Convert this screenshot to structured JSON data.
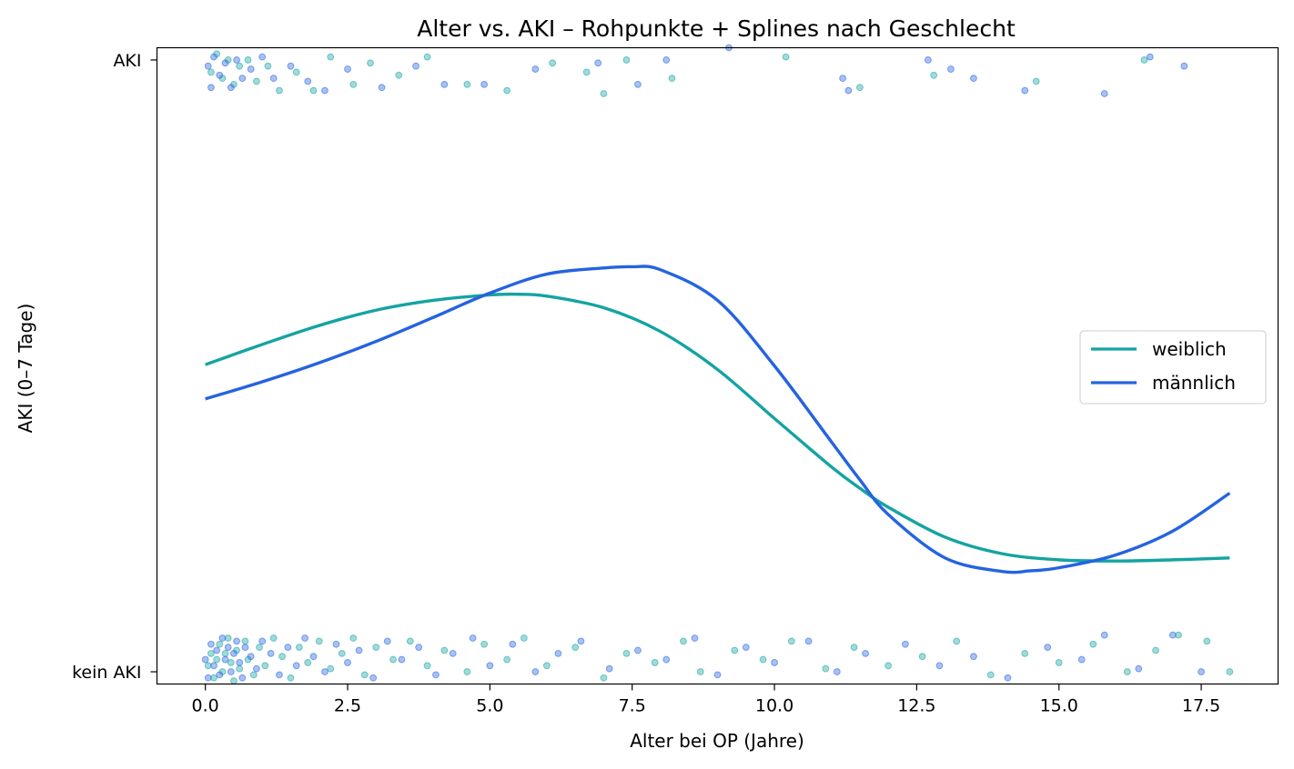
{
  "chart_data": {
    "type": "scatter",
    "title": "Alter vs. AKI – Rohpunkte + Splines nach Geschlecht",
    "xlabel": "Alter bei OP (Jahre)",
    "ylabel": "AKI (0–7 Tage)",
    "xlim": [
      -0.85,
      18.85
    ],
    "ylim": [
      -0.02,
      1.02
    ],
    "x_ticks": [
      {
        "value": 0.0,
        "label": "0.0"
      },
      {
        "value": 2.5,
        "label": "2.5"
      },
      {
        "value": 5.0,
        "label": "5.0"
      },
      {
        "value": 7.5,
        "label": "7.5"
      },
      {
        "value": 10.0,
        "label": "10.0"
      },
      {
        "value": 12.5,
        "label": "12.5"
      },
      {
        "value": 15.0,
        "label": "15.0"
      },
      {
        "value": 17.5,
        "label": "17.5"
      }
    ],
    "y_ticks": [
      {
        "value": 0,
        "label": "kein AKI"
      },
      {
        "value": 1,
        "label": "AKI"
      }
    ],
    "grid": false,
    "legend_position": "center-right",
    "colors": {
      "weiblich": "#14a3a3",
      "maennlich": "#2563e0"
    },
    "series": [
      {
        "name": "weiblich",
        "color": "#14a3a3",
        "spline": {
          "x": [
            0,
            1,
            2,
            3,
            4,
            5,
            5.5,
            6,
            7,
            8,
            9,
            10,
            11,
            11.5,
            12,
            13,
            14,
            15,
            16,
            17,
            18
          ],
          "y": [
            0.502,
            0.535,
            0.566,
            0.591,
            0.607,
            0.616,
            0.617,
            0.614,
            0.595,
            0.556,
            0.494,
            0.414,
            0.335,
            0.3,
            0.269,
            0.22,
            0.193,
            0.183,
            0.181,
            0.183,
            0.186
          ]
        },
        "points": [
          {
            "x": 0.05,
            "y": 0.01
          },
          {
            "x": 0.1,
            "y": 0.03
          },
          {
            "x": 0.15,
            "y": -0.01
          },
          {
            "x": 0.2,
            "y": 0.02
          },
          {
            "x": 0.25,
            "y": 0.045
          },
          {
            "x": 0.3,
            "y": 0.0
          },
          {
            "x": 0.35,
            "y": 0.03
          },
          {
            "x": 0.4,
            "y": 0.055
          },
          {
            "x": 0.45,
            "y": 0.015
          },
          {
            "x": 0.5,
            "y": -0.015
          },
          {
            "x": 0.55,
            "y": 0.035
          },
          {
            "x": 0.6,
            "y": 0.005
          },
          {
            "x": 0.7,
            "y": 0.05
          },
          {
            "x": 0.75,
            "y": 0.02
          },
          {
            "x": 0.85,
            "y": -0.005
          },
          {
            "x": 0.95,
            "y": 0.04
          },
          {
            "x": 1.05,
            "y": 0.01
          },
          {
            "x": 1.2,
            "y": 0.055
          },
          {
            "x": 1.35,
            "y": 0.025
          },
          {
            "x": 1.5,
            "y": -0.01
          },
          {
            "x": 1.65,
            "y": 0.04
          },
          {
            "x": 1.8,
            "y": 0.015
          },
          {
            "x": 2.0,
            "y": 0.05
          },
          {
            "x": 2.2,
            "y": 0.005
          },
          {
            "x": 2.4,
            "y": 0.03
          },
          {
            "x": 2.6,
            "y": 0.055
          },
          {
            "x": 2.8,
            "y": -0.005
          },
          {
            "x": 3.0,
            "y": 0.04
          },
          {
            "x": 3.3,
            "y": 0.02
          },
          {
            "x": 3.6,
            "y": 0.05
          },
          {
            "x": 3.9,
            "y": 0.01
          },
          {
            "x": 4.2,
            "y": 0.035
          },
          {
            "x": 4.6,
            "y": 0.0
          },
          {
            "x": 4.9,
            "y": 0.045
          },
          {
            "x": 5.3,
            "y": 0.02
          },
          {
            "x": 5.6,
            "y": 0.055
          },
          {
            "x": 6.0,
            "y": 0.01
          },
          {
            "x": 6.5,
            "y": 0.04
          },
          {
            "x": 7.0,
            "y": -0.01
          },
          {
            "x": 7.4,
            "y": 0.03
          },
          {
            "x": 7.9,
            "y": 0.015
          },
          {
            "x": 8.4,
            "y": 0.05
          },
          {
            "x": 8.7,
            "y": 0.0
          },
          {
            "x": 9.3,
            "y": 0.035
          },
          {
            "x": 9.8,
            "y": 0.02
          },
          {
            "x": 10.3,
            "y": 0.05
          },
          {
            "x": 10.9,
            "y": 0.005
          },
          {
            "x": 11.4,
            "y": 0.04
          },
          {
            "x": 12.0,
            "y": 0.01
          },
          {
            "x": 12.6,
            "y": 0.025
          },
          {
            "x": 13.2,
            "y": 0.05
          },
          {
            "x": 13.8,
            "y": -0.005
          },
          {
            "x": 14.4,
            "y": 0.03
          },
          {
            "x": 15.0,
            "y": 0.015
          },
          {
            "x": 15.6,
            "y": 0.045
          },
          {
            "x": 16.2,
            "y": 0.0
          },
          {
            "x": 16.7,
            "y": 0.035
          },
          {
            "x": 17.1,
            "y": 0.06
          },
          {
            "x": 17.6,
            "y": 0.05
          },
          {
            "x": 18.0,
            "y": 0.0
          },
          {
            "x": 0.1,
            "y": 0.98
          },
          {
            "x": 0.2,
            "y": 1.01
          },
          {
            "x": 0.3,
            "y": 0.97
          },
          {
            "x": 0.4,
            "y": 1.0
          },
          {
            "x": 0.5,
            "y": 0.96
          },
          {
            "x": 0.6,
            "y": 0.99
          },
          {
            "x": 0.75,
            "y": 1.0
          },
          {
            "x": 0.9,
            "y": 0.965
          },
          {
            "x": 1.1,
            "y": 0.99
          },
          {
            "x": 1.3,
            "y": 0.95
          },
          {
            "x": 1.6,
            "y": 0.98
          },
          {
            "x": 1.9,
            "y": 0.95
          },
          {
            "x": 2.2,
            "y": 1.005
          },
          {
            "x": 2.6,
            "y": 0.96
          },
          {
            "x": 2.9,
            "y": 0.995
          },
          {
            "x": 3.4,
            "y": 0.975
          },
          {
            "x": 3.9,
            "y": 1.005
          },
          {
            "x": 4.6,
            "y": 0.96
          },
          {
            "x": 5.3,
            "y": 0.95
          },
          {
            "x": 6.1,
            "y": 0.995
          },
          {
            "x": 6.7,
            "y": 0.98
          },
          {
            "x": 7.0,
            "y": 0.945
          },
          {
            "x": 7.4,
            "y": 1.0
          },
          {
            "x": 8.2,
            "y": 0.97
          },
          {
            "x": 10.2,
            "y": 1.005
          },
          {
            "x": 11.5,
            "y": 0.955
          },
          {
            "x": 12.8,
            "y": 0.975
          },
          {
            "x": 14.6,
            "y": 0.965
          },
          {
            "x": 16.5,
            "y": 1.0
          }
        ]
      },
      {
        "name": "männlich",
        "color": "#2563e0",
        "spline": {
          "x": [
            0,
            1,
            2,
            3,
            4,
            5,
            6,
            7,
            7.5,
            8,
            9,
            10,
            11,
            11.5,
            12,
            13,
            14,
            14.5,
            15,
            16,
            17,
            18
          ],
          "y": [
            0.446,
            0.474,
            0.505,
            0.54,
            0.579,
            0.619,
            0.65,
            0.66,
            0.662,
            0.657,
            0.607,
            0.5,
            0.376,
            0.314,
            0.257,
            0.186,
            0.164,
            0.165,
            0.17,
            0.191,
            0.23,
            0.292
          ]
        },
        "points": [
          {
            "x": 0.0,
            "y": 0.02
          },
          {
            "x": 0.05,
            "y": -0.01
          },
          {
            "x": 0.1,
            "y": 0.045
          },
          {
            "x": 0.15,
            "y": 0.01
          },
          {
            "x": 0.2,
            "y": 0.035
          },
          {
            "x": 0.25,
            "y": -0.005
          },
          {
            "x": 0.3,
            "y": 0.055
          },
          {
            "x": 0.35,
            "y": 0.02
          },
          {
            "x": 0.4,
            "y": 0.04
          },
          {
            "x": 0.45,
            "y": 0.0
          },
          {
            "x": 0.5,
            "y": 0.03
          },
          {
            "x": 0.55,
            "y": 0.05
          },
          {
            "x": 0.6,
            "y": 0.015
          },
          {
            "x": 0.65,
            "y": -0.01
          },
          {
            "x": 0.7,
            "y": 0.04
          },
          {
            "x": 0.8,
            "y": 0.025
          },
          {
            "x": 0.9,
            "y": 0.005
          },
          {
            "x": 1.0,
            "y": 0.05
          },
          {
            "x": 1.15,
            "y": 0.03
          },
          {
            "x": 1.3,
            "y": -0.005
          },
          {
            "x": 1.45,
            "y": 0.04
          },
          {
            "x": 1.6,
            "y": 0.01
          },
          {
            "x": 1.75,
            "y": 0.055
          },
          {
            "x": 1.9,
            "y": 0.025
          },
          {
            "x": 2.1,
            "y": 0.0
          },
          {
            "x": 2.3,
            "y": 0.045
          },
          {
            "x": 2.5,
            "y": 0.015
          },
          {
            "x": 2.7,
            "y": 0.035
          },
          {
            "x": 2.95,
            "y": -0.01
          },
          {
            "x": 3.2,
            "y": 0.05
          },
          {
            "x": 3.45,
            "y": 0.02
          },
          {
            "x": 3.75,
            "y": 0.04
          },
          {
            "x": 4.05,
            "y": -0.005
          },
          {
            "x": 4.35,
            "y": 0.03
          },
          {
            "x": 4.7,
            "y": 0.055
          },
          {
            "x": 5.0,
            "y": 0.01
          },
          {
            "x": 5.4,
            "y": 0.045
          },
          {
            "x": 5.8,
            "y": 0.0
          },
          {
            "x": 6.2,
            "y": 0.03
          },
          {
            "x": 6.6,
            "y": 0.05
          },
          {
            "x": 7.1,
            "y": 0.005
          },
          {
            "x": 7.6,
            "y": 0.035
          },
          {
            "x": 8.1,
            "y": 0.02
          },
          {
            "x": 8.6,
            "y": 0.055
          },
          {
            "x": 9.0,
            "y": -0.005
          },
          {
            "x": 9.5,
            "y": 0.04
          },
          {
            "x": 10.0,
            "y": 0.015
          },
          {
            "x": 10.6,
            "y": 0.05
          },
          {
            "x": 11.1,
            "y": 0.0
          },
          {
            "x": 11.6,
            "y": 0.03
          },
          {
            "x": 12.3,
            "y": 0.045
          },
          {
            "x": 12.9,
            "y": 0.01
          },
          {
            "x": 13.5,
            "y": 0.025
          },
          {
            "x": 14.1,
            "y": -0.01
          },
          {
            "x": 14.8,
            "y": 0.04
          },
          {
            "x": 15.4,
            "y": 0.02
          },
          {
            "x": 15.8,
            "y": 0.06
          },
          {
            "x": 16.4,
            "y": 0.005
          },
          {
            "x": 17.0,
            "y": 0.06
          },
          {
            "x": 17.5,
            "y": 0.0
          },
          {
            "x": 0.05,
            "y": 0.99
          },
          {
            "x": 0.1,
            "y": 0.955
          },
          {
            "x": 0.15,
            "y": 1.005
          },
          {
            "x": 0.25,
            "y": 0.975
          },
          {
            "x": 0.35,
            "y": 0.995
          },
          {
            "x": 0.45,
            "y": 0.955
          },
          {
            "x": 0.55,
            "y": 1.0
          },
          {
            "x": 0.65,
            "y": 0.97
          },
          {
            "x": 0.8,
            "y": 0.985
          },
          {
            "x": 1.0,
            "y": 1.005
          },
          {
            "x": 1.2,
            "y": 0.97
          },
          {
            "x": 1.5,
            "y": 0.99
          },
          {
            "x": 1.8,
            "y": 0.965
          },
          {
            "x": 2.1,
            "y": 0.95
          },
          {
            "x": 2.5,
            "y": 0.985
          },
          {
            "x": 3.1,
            "y": 0.955
          },
          {
            "x": 3.7,
            "y": 0.99
          },
          {
            "x": 4.2,
            "y": 0.96
          },
          {
            "x": 4.9,
            "y": 0.96
          },
          {
            "x": 5.8,
            "y": 0.985
          },
          {
            "x": 6.9,
            "y": 0.995
          },
          {
            "x": 7.6,
            "y": 0.96
          },
          {
            "x": 8.1,
            "y": 1.0
          },
          {
            "x": 9.2,
            "y": 1.02
          },
          {
            "x": 11.2,
            "y": 0.97
          },
          {
            "x": 11.3,
            "y": 0.95
          },
          {
            "x": 12.7,
            "y": 1.0
          },
          {
            "x": 13.1,
            "y": 0.985
          },
          {
            "x": 13.5,
            "y": 0.97
          },
          {
            "x": 14.4,
            "y": 0.95
          },
          {
            "x": 15.8,
            "y": 0.945
          },
          {
            "x": 17.2,
            "y": 0.99
          },
          {
            "x": 16.6,
            "y": 1.005
          }
        ]
      }
    ]
  }
}
